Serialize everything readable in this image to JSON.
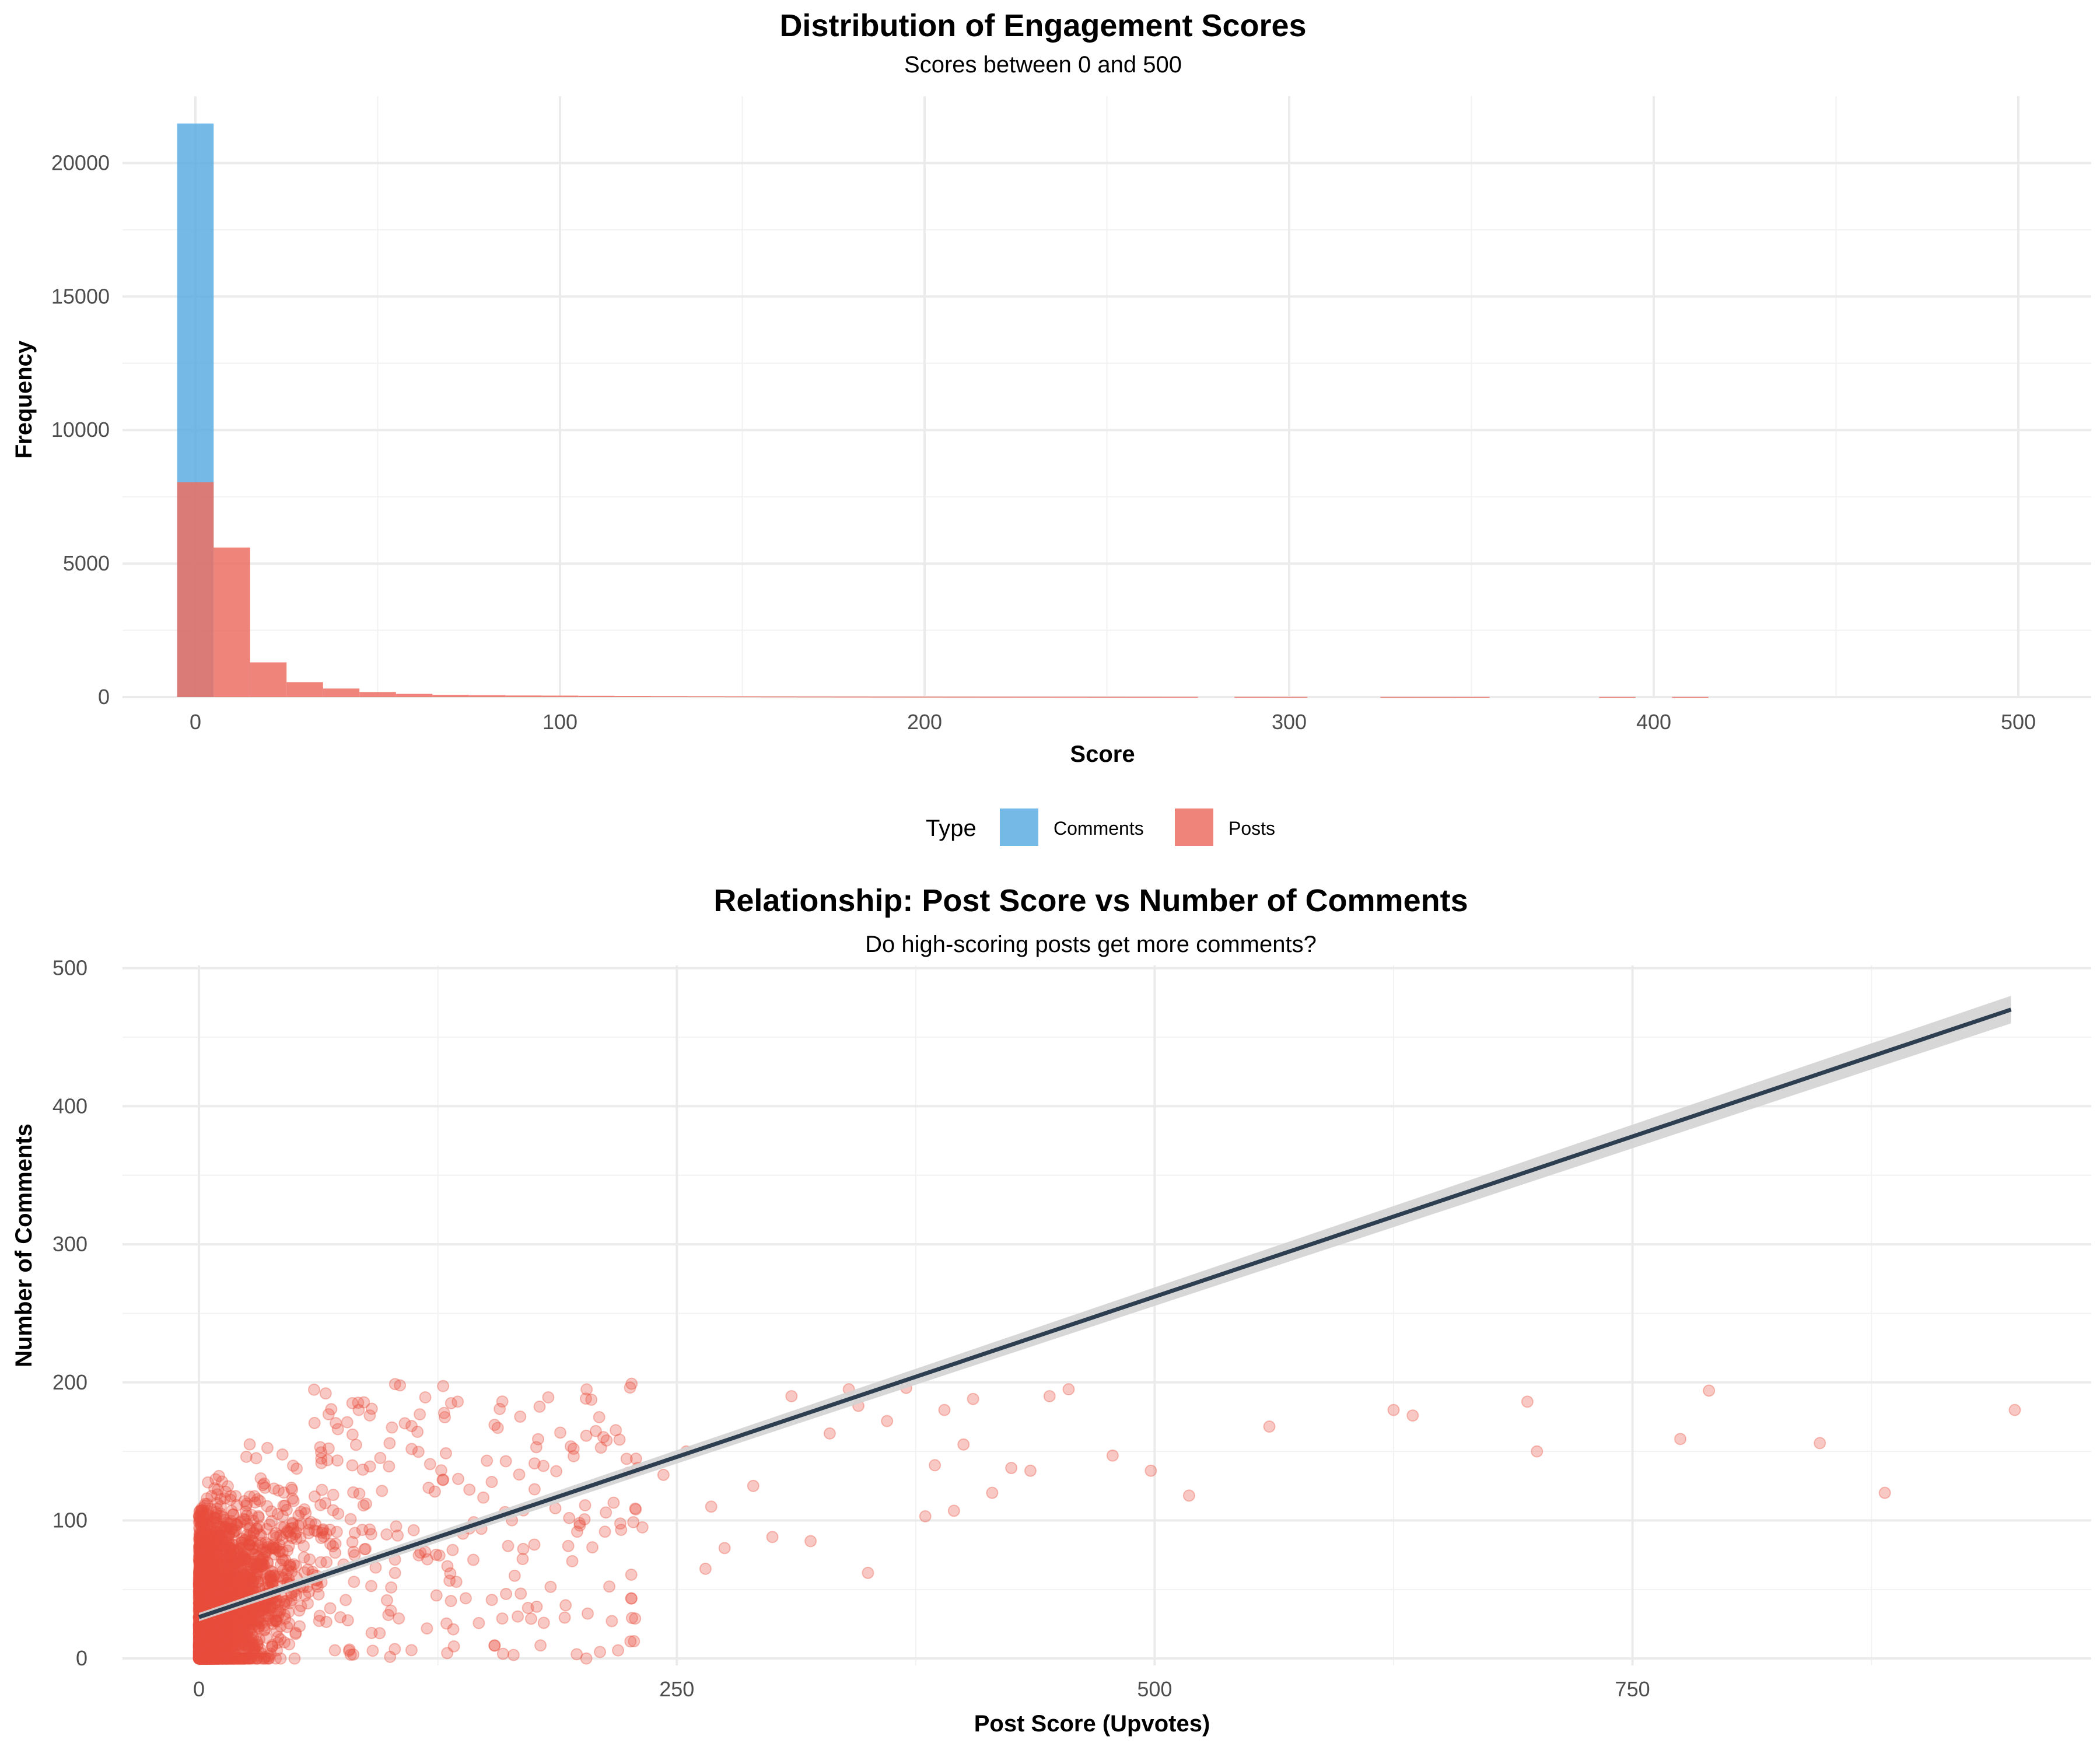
{
  "chart_data": [
    {
      "type": "histogram",
      "title": "Distribution of Engagement Scores",
      "subtitle": "Scores between 0 and 500",
      "xlabel": "Score",
      "ylabel": "Frequency",
      "xlim": [
        -20,
        520
      ],
      "ylim": [
        0,
        22500
      ],
      "x_ticks": [
        0,
        100,
        200,
        300,
        400,
        500
      ],
      "y_ticks": [
        0,
        5000,
        10000,
        15000,
        20000
      ],
      "bin_width": 10,
      "grid": true,
      "legend": {
        "title": "Type",
        "position": "bottom",
        "entries": [
          {
            "name": "Comments",
            "color": "#5DADE2"
          },
          {
            "name": "Posts",
            "color": "#EC7063"
          }
        ]
      },
      "series": [
        {
          "name": "Comments",
          "color": "#5DADE2",
          "bins": [
            [
              0,
              21480
            ]
          ]
        },
        {
          "name": "Posts",
          "color": "#EC7063",
          "bins": [
            [
              0,
              8050
            ],
            [
              10,
              5600
            ],
            [
              20,
              1300
            ],
            [
              30,
              560
            ],
            [
              40,
              320
            ],
            [
              50,
              190
            ],
            [
              60,
              120
            ],
            [
              70,
              85
            ],
            [
              80,
              70
            ],
            [
              90,
              60
            ],
            [
              100,
              55
            ],
            [
              110,
              48
            ],
            [
              120,
              42
            ],
            [
              130,
              36
            ],
            [
              140,
              32
            ],
            [
              150,
              28
            ],
            [
              160,
              25
            ],
            [
              170,
              22
            ],
            [
              180,
              20
            ],
            [
              190,
              18
            ],
            [
              200,
              17
            ],
            [
              210,
              15
            ],
            [
              220,
              14
            ],
            [
              230,
              13
            ],
            [
              240,
              12
            ],
            [
              250,
              11
            ],
            [
              260,
              10
            ],
            [
              270,
              9
            ],
            [
              290,
              8
            ],
            [
              300,
              7
            ],
            [
              330,
              6
            ],
            [
              340,
              6
            ],
            [
              350,
              5
            ],
            [
              390,
              5
            ],
            [
              410,
              5
            ]
          ]
        }
      ]
    },
    {
      "type": "scatter",
      "title": "Relationship: Post Score vs Number of Comments",
      "subtitle": "Do high-scoring posts get more comments?",
      "xlabel": "Post Score (Upvotes)",
      "ylabel": "Number of Comments",
      "xlim": [
        -40,
        990
      ],
      "ylim": [
        -5,
        502
      ],
      "x_ticks": [
        0,
        250,
        500,
        750
      ],
      "y_ticks": [
        0,
        100,
        200,
        300,
        400,
        500
      ],
      "grid": true,
      "point_color": "#E74C3C",
      "trend_line": {
        "color": "#2C3E50",
        "band_color": "#D3D3D3",
        "x_start": 0,
        "y_start": 30,
        "x_end": 948,
        "y_end": 470,
        "se_start": 3,
        "se_end": 10
      },
      "outliers": [
        [
          350,
          62
        ],
        [
          340,
          195
        ],
        [
          320,
          85
        ],
        [
          310,
          190
        ],
        [
          300,
          88
        ],
        [
          290,
          125
        ],
        [
          275,
          80
        ],
        [
          380,
          103
        ],
        [
          385,
          140
        ],
        [
          395,
          107
        ],
        [
          400,
          155
        ],
        [
          415,
          120
        ],
        [
          425,
          138
        ],
        [
          435,
          136
        ],
        [
          445,
          190
        ],
        [
          455,
          195
        ],
        [
          478,
          147
        ],
        [
          498,
          136
        ],
        [
          518,
          118
        ],
        [
          560,
          168
        ],
        [
          625,
          180
        ],
        [
          635,
          176
        ],
        [
          695,
          186
        ],
        [
          700,
          150
        ],
        [
          775,
          159
        ],
        [
          790,
          194
        ],
        [
          848,
          156
        ],
        [
          882,
          120
        ],
        [
          950,
          180
        ],
        [
          330,
          163
        ],
        [
          345,
          183
        ],
        [
          360,
          172
        ],
        [
          370,
          196
        ],
        [
          390,
          180
        ],
        [
          405,
          188
        ],
        [
          265,
          65
        ],
        [
          268,
          110
        ],
        [
          255,
          150
        ],
        [
          243,
          133
        ],
        [
          232,
          95
        ]
      ]
    }
  ]
}
